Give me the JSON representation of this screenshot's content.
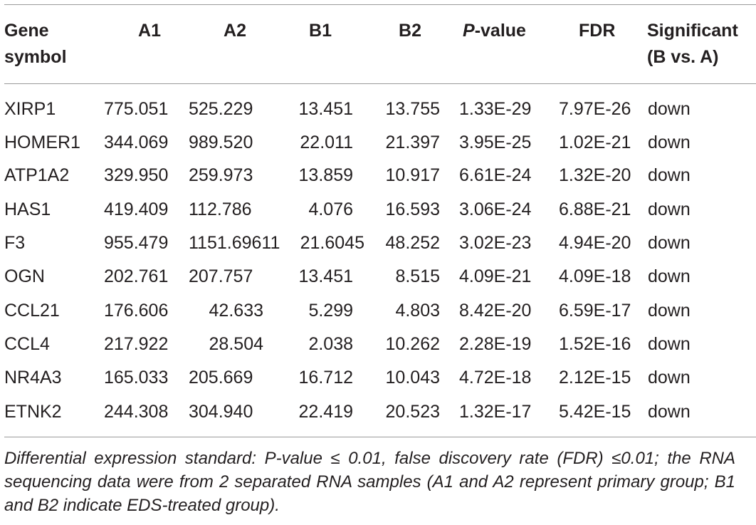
{
  "table": {
    "headers": {
      "gene_line1": "Gene",
      "gene_line2": "symbol",
      "a1": "A1",
      "a2": "A2",
      "b1": "B1",
      "b2": "B2",
      "pvalue_italic": "P",
      "pvalue_rest": "-value",
      "fdr": "FDR",
      "sig_line1": "Significant",
      "sig_line2": "(B vs. A)"
    },
    "rows": [
      {
        "gene": "XIRP1",
        "a1": "775.051",
        "a2": "525.229",
        "b1": "13.451",
        "b2": "13.755",
        "pvalue": "1.33E-29",
        "fdr": "7.97E-26",
        "sig": "down"
      },
      {
        "gene": "HOMER1",
        "a1": "344.069",
        "a2": "989.520",
        "b1": "22.011",
        "b2": "21.397",
        "pvalue": "3.95E-25",
        "fdr": "1.02E-21",
        "sig": "down"
      },
      {
        "gene": "ATP1A2",
        "a1": "329.950",
        "a2": "259.973",
        "b1": "13.859",
        "b2": "10.917",
        "pvalue": "6.61E-24",
        "fdr": "1.32E-20",
        "sig": "down"
      },
      {
        "gene": "HAS1",
        "a1": "419.409",
        "a2": "112.786",
        "b1": "4.076",
        "b2": "16.593",
        "pvalue": "3.06E-24",
        "fdr": "6.88E-21",
        "sig": "down"
      },
      {
        "gene": "F3",
        "a1": "955.479",
        "a2": "1151.69611",
        "b1": "21.6045",
        "b2": "48.252",
        "pvalue": "3.02E-23",
        "fdr": "4.94E-20",
        "sig": "down"
      },
      {
        "gene": "OGN",
        "a1": "202.761",
        "a2": "207.757",
        "b1": "13.451",
        "b2": "8.515",
        "pvalue": "4.09E-21",
        "fdr": "4.09E-18",
        "sig": "down"
      },
      {
        "gene": "CCL21",
        "a1": "176.606",
        "a2": "42.633",
        "b1": "5.299",
        "b2": "4.803",
        "pvalue": "8.42E-20",
        "fdr": "6.59E-17",
        "sig": "down"
      },
      {
        "gene": "CCL4",
        "a1": "217.922",
        "a2": "28.504",
        "b1": "2.038",
        "b2": "10.262",
        "pvalue": "2.28E-19",
        "fdr": "1.52E-16",
        "sig": "down"
      },
      {
        "gene": "NR4A3",
        "a1": "165.033",
        "a2": "205.669",
        "b1": "16.712",
        "b2": "10.043",
        "pvalue": "4.72E-18",
        "fdr": "2.12E-15",
        "sig": "down"
      },
      {
        "gene": "ETNK2",
        "a1": "244.308",
        "a2": "304.940",
        "b1": "22.419",
        "b2": "20.523",
        "pvalue": "1.32E-17",
        "fdr": "5.42E-15",
        "sig": "down"
      }
    ],
    "footnote": "Differential expression standard: P-value ≤ 0.01, false discovery rate (FDR) ≤0.01; the RNA sequencing data were from 2 separated RNA samples (A1 and A2 represent primary group; B1 and B2 indicate EDS-treated group)."
  }
}
